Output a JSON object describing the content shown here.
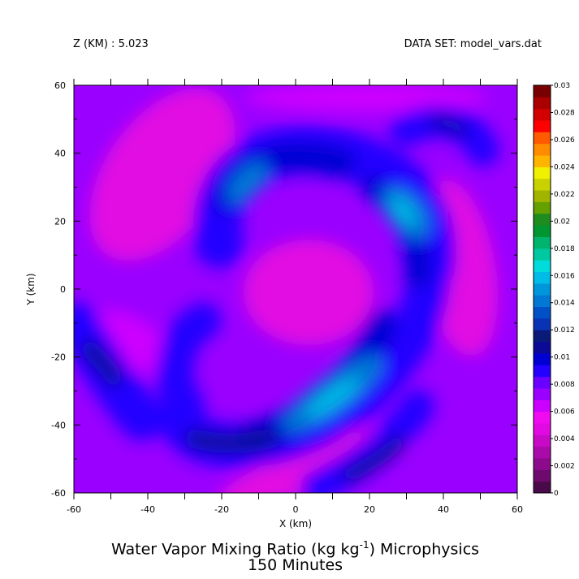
{
  "header": {
    "left": "Z (KM) : 5.023",
    "right": "DATA SET: model_vars.dat"
  },
  "title": {
    "prefix": "Water Vapor Mixing Ratio (kg kg",
    "exponent": "-1",
    "suffix": ") Microphysics",
    "time": "150 Minutes"
  },
  "chart_data": {
    "type": "heatmap",
    "xlabel": "X (km)",
    "ylabel": "Y (km)",
    "xlim": [
      -60,
      60
    ],
    "ylim": [
      -60,
      60
    ],
    "x_ticks": [
      -60,
      -40,
      -20,
      0,
      20,
      40,
      60
    ],
    "y_ticks": [
      -60,
      -40,
      -20,
      0,
      20,
      40,
      60
    ],
    "colorbar": {
      "levels": [
        0,
        0.001,
        0.002,
        0.003,
        0.004,
        0.005,
        0.006,
        0.007,
        0.008,
        0.009,
        0.01,
        0.011,
        0.012,
        0.013,
        0.014,
        0.015,
        0.016,
        0.017,
        0.018,
        0.019,
        0.02,
        0.021,
        0.022,
        0.023,
        0.024,
        0.025,
        0.026,
        0.027,
        0.028,
        0.029,
        0.03
      ],
      "labels": [
        "0",
        "0.002",
        "0.004",
        "0.006",
        "0.008",
        "0.01",
        "0.012",
        "0.014",
        "0.016",
        "0.018",
        "0.02",
        "0.022",
        "0.024",
        "0.026",
        "0.028",
        "0.03"
      ],
      "colors": [
        "#4a0a4a",
        "#6e0a6e",
        "#8c0a8c",
        "#aa0aaa",
        "#c80ac8",
        "#e20ae2",
        "#f00af0",
        "#cc00ff",
        "#9a00ff",
        "#6a00ff",
        "#2400ff",
        "#0000d2",
        "#0a0a96",
        "#0a1a78",
        "#0a32b4",
        "#0050c8",
        "#0078d4",
        "#0096dc",
        "#00bce6",
        "#00dcdc",
        "#00c8a0",
        "#00b46e",
        "#009632",
        "#1e8c1e",
        "#64a000",
        "#a0b400",
        "#c8d200",
        "#f0f000",
        "#ffb400",
        "#ff8c00",
        "#ff5a00",
        "#ff0000",
        "#d20000",
        "#aa0000",
        "#780000"
      ],
      "colors_note": ""
    },
    "field": [
      {
        "x": 0,
        "y": -5,
        "q": 0.0055
      },
      {
        "x": -45,
        "y": 25,
        "q": 0.006
      },
      {
        "x": 45,
        "y": 20,
        "q": 0.0062
      },
      {
        "x": 10,
        "y": -55,
        "q": 0.006
      },
      {
        "x": -35,
        "y": -30,
        "q": 0.0065
      },
      {
        "x": -15,
        "y": 40,
        "q": 0.0095
      },
      {
        "x": -20,
        "y": 30,
        "q": 0.012
      },
      {
        "x": 5,
        "y": 35,
        "q": 0.0095
      },
      {
        "x": 25,
        "y": 25,
        "q": 0.012
      },
      {
        "x": 30,
        "y": 22,
        "q": 0.0135
      },
      {
        "x": 33,
        "y": 5,
        "q": 0.0095
      },
      {
        "x": 25,
        "y": -15,
        "q": 0.011
      },
      {
        "x": 18,
        "y": -28,
        "q": 0.0125
      },
      {
        "x": 10,
        "y": -35,
        "q": 0.0135
      },
      {
        "x": -10,
        "y": -42,
        "q": 0.0095
      },
      {
        "x": -25,
        "y": -30,
        "q": 0.0082
      },
      {
        "x": -55,
        "y": -22,
        "q": 0.0088
      },
      {
        "x": -45,
        "y": -35,
        "q": 0.0085
      },
      {
        "x": 40,
        "y": 47,
        "q": 0.009
      },
      {
        "x": 20,
        "y": -52,
        "q": 0.0088
      }
    ]
  }
}
